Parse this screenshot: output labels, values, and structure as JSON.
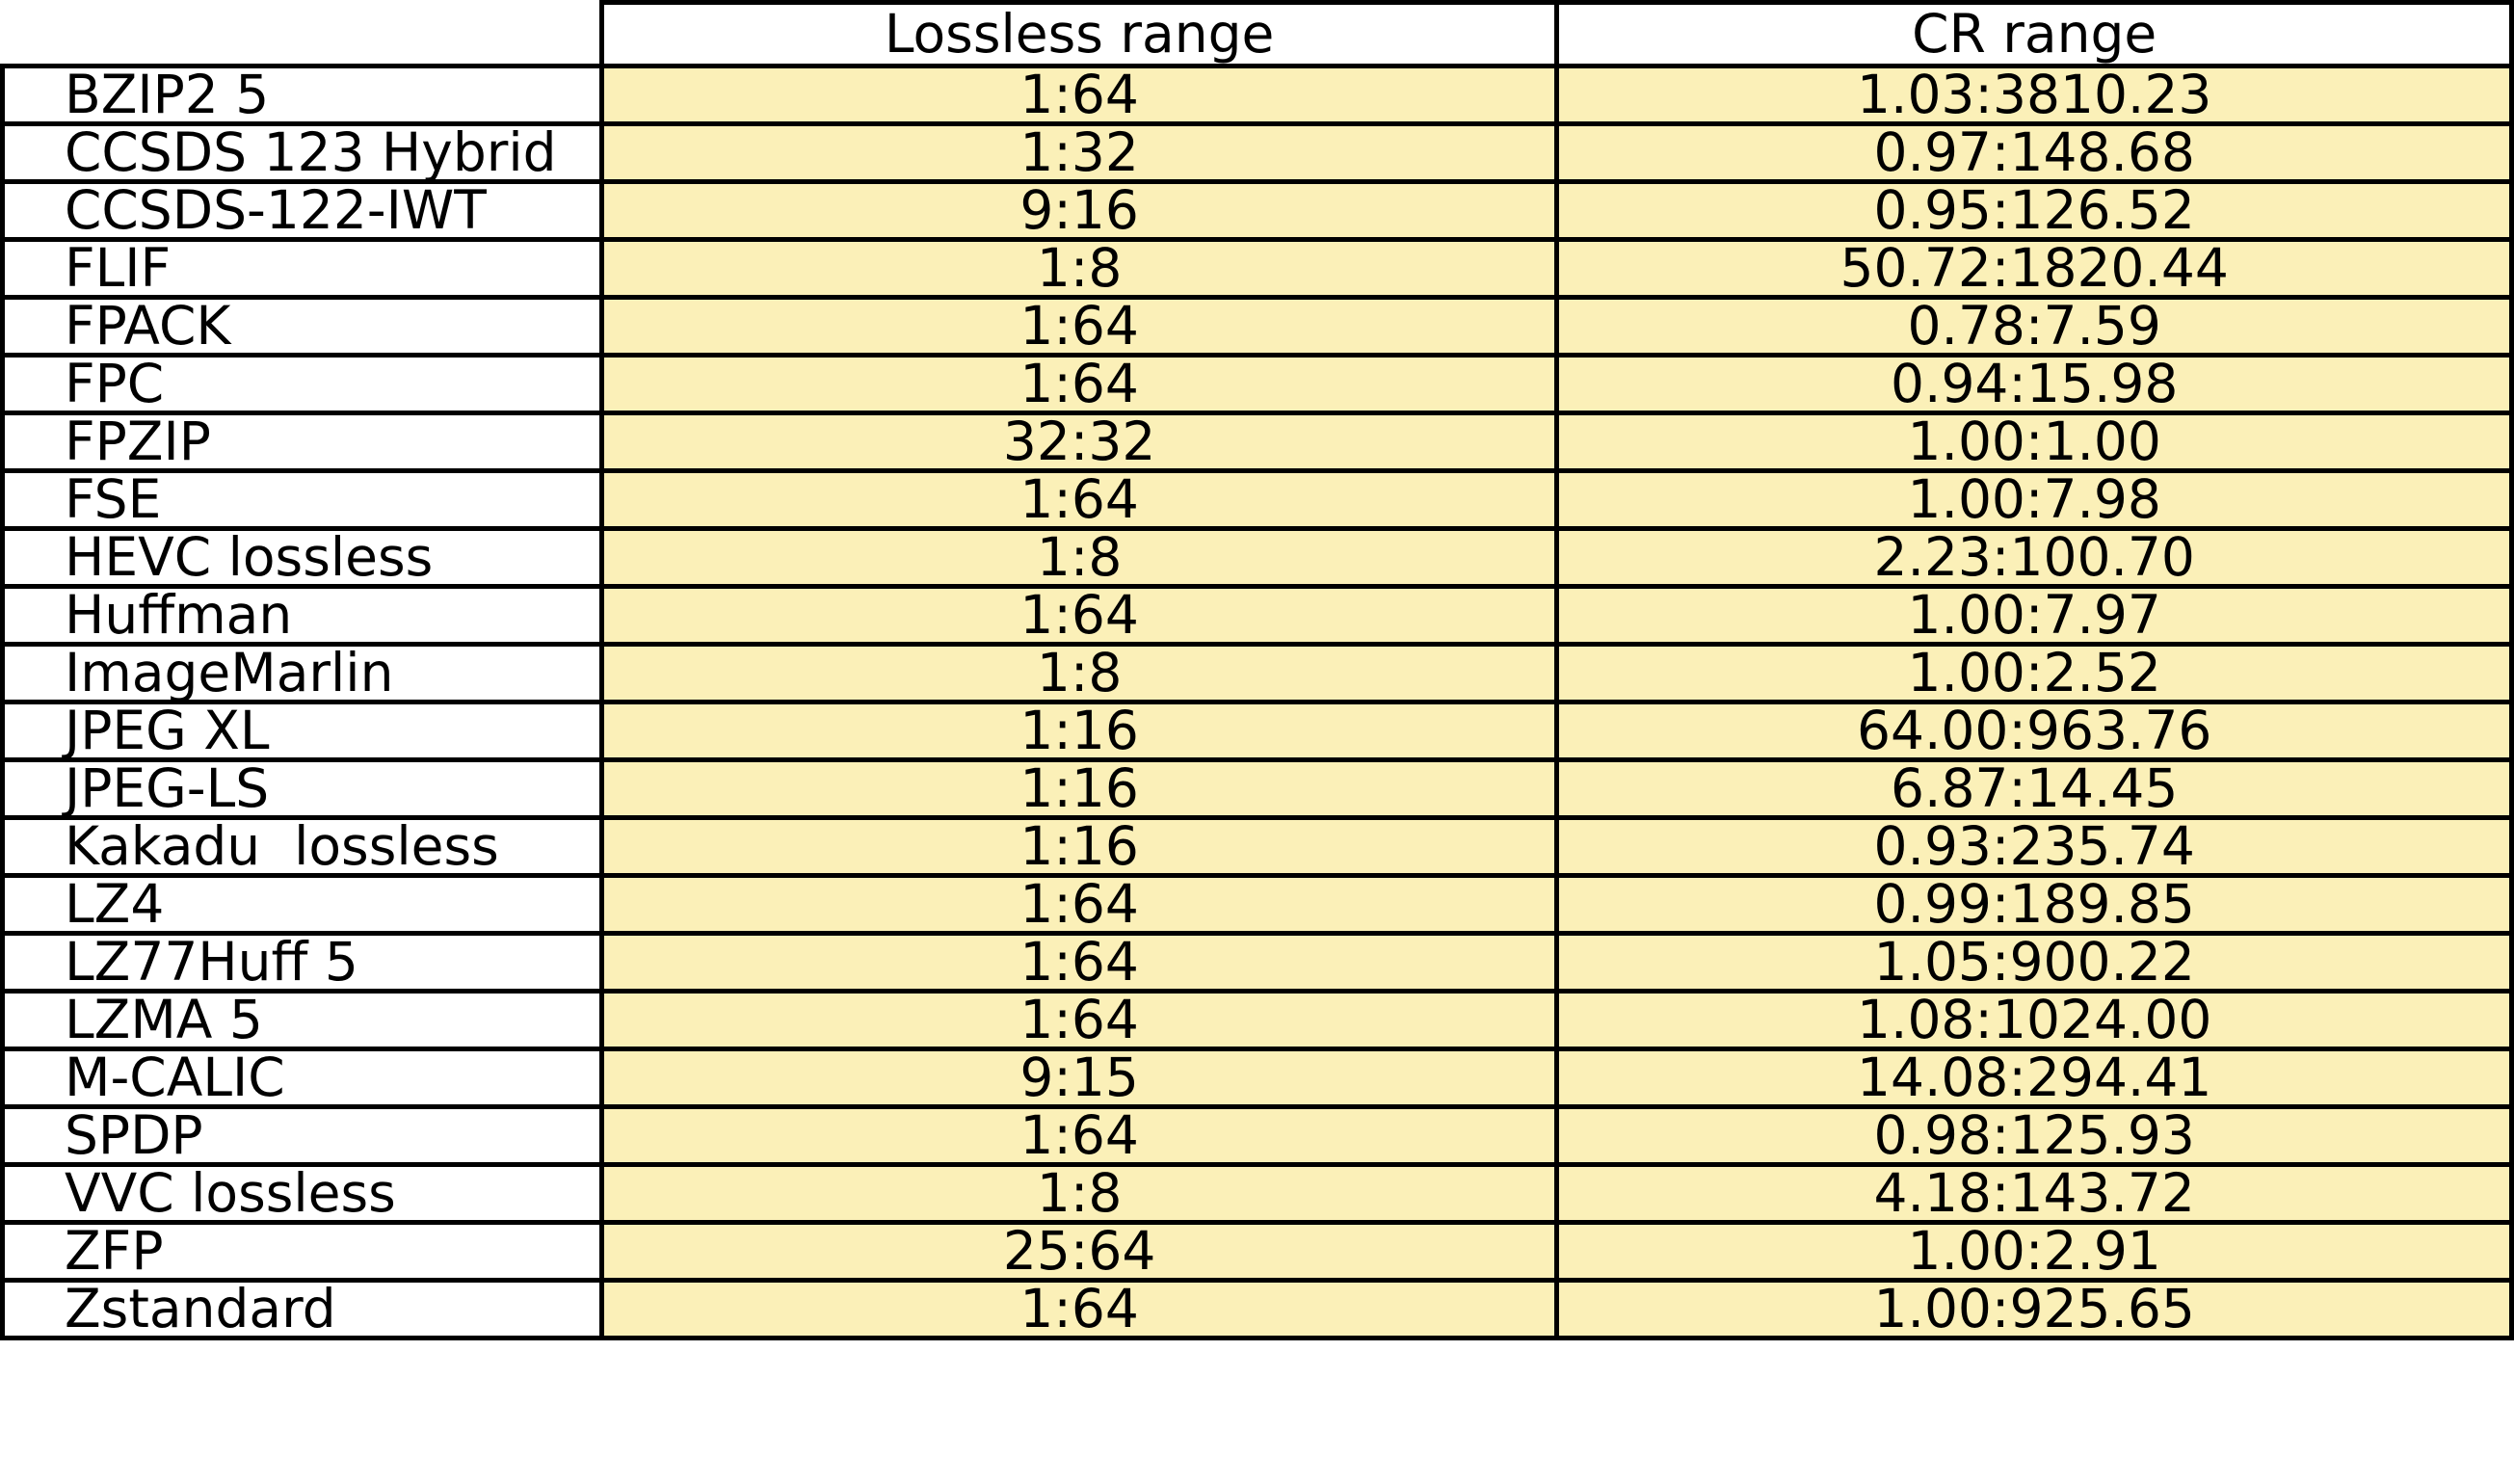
{
  "table": {
    "headers": [
      "",
      "Lossless range",
      "CR range"
    ],
    "rows": [
      {
        "name": "BZIP2 5",
        "lossless": "1:64",
        "cr": "1.03:3810.23"
      },
      {
        "name": "CCSDS 123 Hybrid",
        "lossless": "1:32",
        "cr": "0.97:148.68"
      },
      {
        "name": "CCSDS-122-IWT",
        "lossless": "9:16",
        "cr": "0.95:126.52"
      },
      {
        "name": "FLIF",
        "lossless": "1:8",
        "cr": "50.72:1820.44"
      },
      {
        "name": "FPACK",
        "lossless": "1:64",
        "cr": "0.78:7.59"
      },
      {
        "name": "FPC",
        "lossless": "1:64",
        "cr": "0.94:15.98"
      },
      {
        "name": "FPZIP",
        "lossless": "32:32",
        "cr": "1.00:1.00"
      },
      {
        "name": "FSE",
        "lossless": "1:64",
        "cr": "1.00:7.98"
      },
      {
        "name": "HEVC lossless",
        "lossless": "1:8",
        "cr": "2.23:100.70"
      },
      {
        "name": "Huffman",
        "lossless": "1:64",
        "cr": "1.00:7.97"
      },
      {
        "name": "ImageMarlin",
        "lossless": "1:8",
        "cr": "1.00:2.52"
      },
      {
        "name": "JPEG XL",
        "lossless": "1:16",
        "cr": "64.00:963.76"
      },
      {
        "name": "JPEG-LS",
        "lossless": "1:16",
        "cr": "6.87:14.45"
      },
      {
        "name": "Kakadu  lossless",
        "lossless": "1:16",
        "cr": "0.93:235.74"
      },
      {
        "name": "LZ4",
        "lossless": "1:64",
        "cr": "0.99:189.85"
      },
      {
        "name": "LZ77Huff 5",
        "lossless": "1:64",
        "cr": "1.05:900.22"
      },
      {
        "name": "LZMA 5",
        "lossless": "1:64",
        "cr": "1.08:1024.00"
      },
      {
        "name": "M-CALIC",
        "lossless": "9:15",
        "cr": "14.08:294.41"
      },
      {
        "name": "SPDP",
        "lossless": "1:64",
        "cr": "0.98:125.93"
      },
      {
        "name": "VVC lossless",
        "lossless": "1:8",
        "cr": "4.18:143.72"
      },
      {
        "name": "ZFP",
        "lossless": "25:64",
        "cr": "1.00:2.91"
      },
      {
        "name": "Zstandard",
        "lossless": "1:64",
        "cr": "1.00:925.65"
      }
    ]
  },
  "colors": {
    "value_cell_bg": "#fbf0b8",
    "name_cell_bg": "#ffffff",
    "border": "#000000"
  }
}
